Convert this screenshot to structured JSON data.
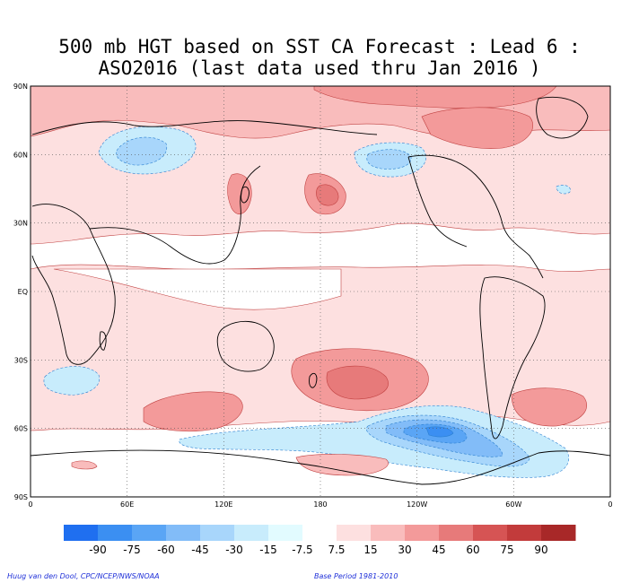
{
  "title": {
    "line1": "500 mb HGT based on SST CA Forecast : Lead 6 :",
    "line2": "ASO2016 (last data used thru Jan 2016 )"
  },
  "map": {
    "projection": "equirectangular",
    "lon_range": [
      0,
      360
    ],
    "lat_range": [
      -90,
      90
    ],
    "lat_ticks": [
      "90N",
      "60N",
      "30N",
      "EQ",
      "30S",
      "60S",
      "90S"
    ],
    "lon_ticks": [
      "0",
      "60E",
      "120E",
      "180",
      "120W",
      "60W",
      "0"
    ],
    "gridlines": "dotted"
  },
  "colorbar": {
    "labels": [
      "-90",
      "-75",
      "-60",
      "-45",
      "-30",
      "-15",
      "-7.5",
      "7.5",
      "15",
      "30",
      "45",
      "60",
      "75",
      "90"
    ],
    "colors": [
      "#1f6ff0",
      "#3b8ff2",
      "#5aa5f5",
      "#82bcf8",
      "#a8d6fb",
      "#c8ecfc",
      "#e2fbff",
      "#ffffff",
      "#fde0e0",
      "#f9bcbc",
      "#f39a9a",
      "#e77a7a",
      "#d65454",
      "#c23b3b",
      "#a82828"
    ]
  },
  "footer": {
    "credit": "Huug van den Dool, CPC/NCEP/NWS/NOAA",
    "base_period": "Base Period 1981-2010"
  }
}
